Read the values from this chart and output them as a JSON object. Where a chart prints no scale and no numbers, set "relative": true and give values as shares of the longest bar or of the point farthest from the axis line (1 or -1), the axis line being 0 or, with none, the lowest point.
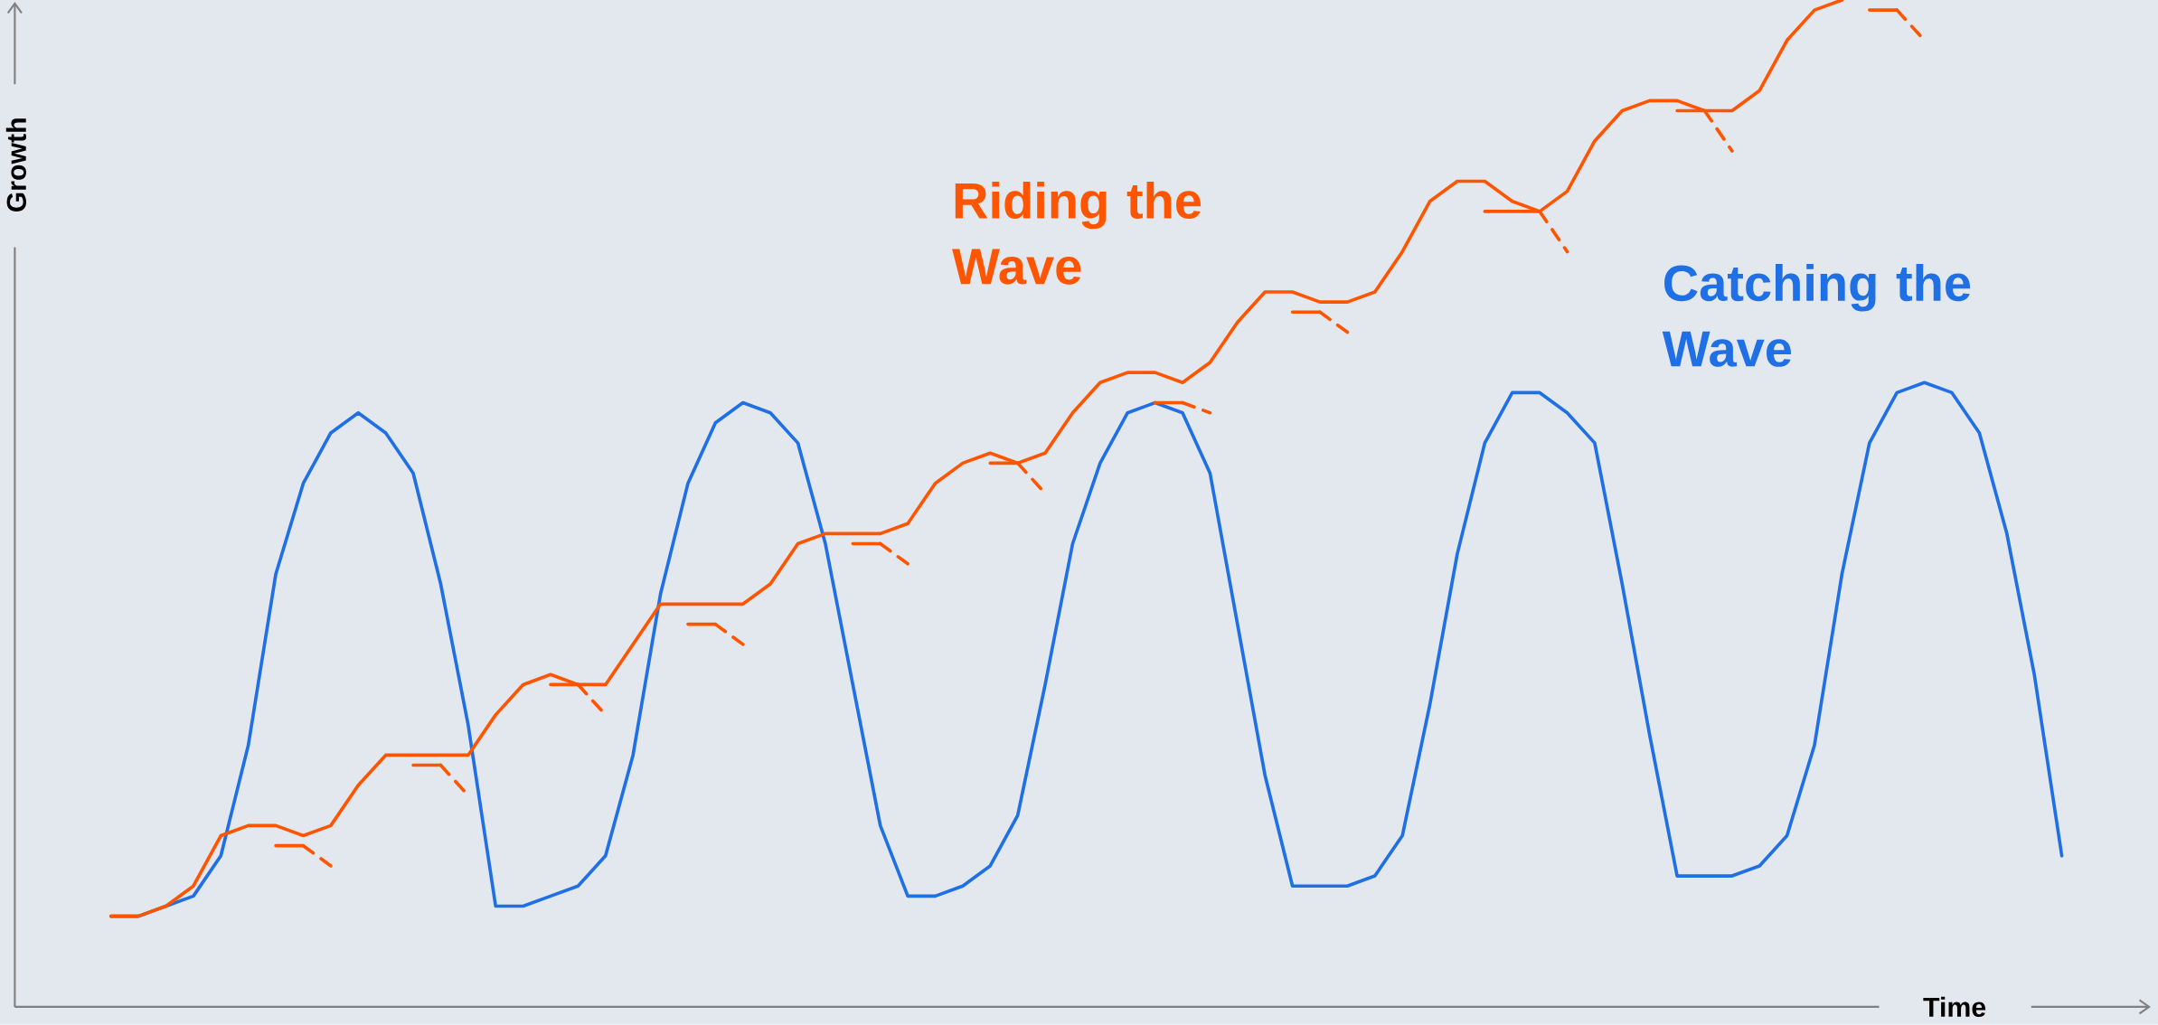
{
  "chart_data": {
    "type": "line",
    "relative": true,
    "xlabel": "Time",
    "ylabel": "Growth",
    "categories": [
      null,
      null,
      null,
      null,
      null,
      null,
      null,
      null,
      null,
      null,
      null,
      null,
      null,
      null,
      null,
      null,
      null,
      null,
      null,
      null,
      null,
      null,
      null,
      null,
      null,
      null,
      null,
      null,
      null,
      null,
      null,
      null,
      null,
      null,
      null,
      null,
      null,
      null,
      null,
      null,
      null,
      null,
      null,
      null,
      null,
      null,
      null,
      null,
      null,
      null,
      null,
      null,
      null,
      null,
      null,
      null,
      null,
      null,
      null,
      null,
      null,
      null,
      null,
      null,
      null,
      null,
      null,
      null,
      null,
      null,
      null,
      null
    ],
    "series": [
      {
        "name": "Catching the Wave",
        "color": "#1f6fe5",
        "values": [
          0.09,
          0.09,
          0.1,
          0.11,
          0.15,
          0.26,
          0.43,
          0.52,
          0.57,
          0.59,
          0.57,
          0.53,
          0.42,
          0.28,
          0.1,
          0.1,
          0.11,
          0.12,
          0.15,
          0.25,
          0.41,
          0.52,
          0.58,
          0.6,
          0.59,
          0.56,
          0.46,
          0.32,
          0.18,
          0.11,
          0.11,
          0.12,
          0.14,
          0.19,
          0.32,
          0.46,
          0.54,
          0.59,
          0.6,
          0.59,
          0.53,
          0.38,
          0.23,
          0.12,
          0.12,
          0.12,
          0.13,
          0.17,
          0.3,
          0.45,
          0.56,
          0.61,
          0.61,
          0.59,
          0.56,
          0.42,
          0.27,
          0.13,
          0.13,
          0.13,
          0.14,
          0.17,
          0.26,
          0.43,
          0.56,
          0.61,
          0.62,
          0.61,
          0.57,
          0.47,
          0.33,
          0.15
        ]
      },
      {
        "name": "Riding the Wave",
        "color": "#ff5500",
        "values": [
          0.09,
          0.09,
          0.1,
          0.12,
          0.17,
          0.18,
          0.18,
          0.17,
          0.18,
          0.22,
          0.25,
          0.25,
          0.25,
          0.25,
          0.29,
          0.32,
          0.33,
          0.32,
          0.32,
          0.36,
          0.4,
          0.4,
          0.4,
          0.4,
          0.42,
          0.46,
          0.47,
          0.47,
          0.47,
          0.48,
          0.52,
          0.54,
          0.55,
          0.54,
          0.55,
          0.59,
          0.62,
          0.63,
          0.63,
          0.62,
          0.64,
          0.68,
          0.71,
          0.71,
          0.7,
          0.7,
          0.71,
          0.75,
          0.8,
          0.82,
          0.82,
          0.8,
          0.79,
          0.81,
          0.86,
          0.89,
          0.9,
          0.9,
          0.89,
          0.89,
          0.91,
          0.96,
          0.99,
          1.0,
          null,
          null,
          null,
          null,
          null,
          null,
          null,
          null
        ]
      },
      {
        "color": "#ff5500",
        "values": [
          null,
          null,
          null,
          null,
          null,
          null,
          0.16,
          0.16,
          null,
          null,
          null,
          0.24,
          0.24,
          null,
          null,
          null,
          0.32,
          0.32,
          null,
          null,
          null,
          0.38,
          0.38,
          null,
          null,
          null,
          null,
          0.46,
          0.46,
          null,
          null,
          null,
          0.54,
          0.54,
          null,
          null,
          null,
          null,
          0.6,
          0.6,
          null,
          null,
          null,
          0.69,
          0.69,
          null,
          null,
          null,
          null,
          null,
          0.79,
          0.79,
          0.79,
          null,
          null,
          null,
          null,
          0.89,
          0.89,
          null,
          null,
          null,
          null,
          null,
          0.99,
          0.99,
          null,
          null,
          null,
          null,
          null,
          null
        ]
      },
      {
        "color": "#ff5500",
        "line_style": "dashed",
        "values": [
          null,
          null,
          null,
          null,
          null,
          null,
          null,
          0.16,
          0.14,
          null,
          null,
          null,
          0.24,
          0.21,
          null,
          null,
          null,
          0.32,
          0.29,
          null,
          null,
          null,
          0.38,
          0.36,
          null,
          null,
          null,
          null,
          0.46,
          0.44,
          null,
          null,
          null,
          0.54,
          0.51,
          null,
          null,
          null,
          null,
          0.6,
          0.59,
          null,
          null,
          null,
          0.69,
          0.67,
          null,
          null,
          null,
          null,
          null,
          null,
          0.79,
          0.75,
          null,
          null,
          null,
          null,
          0.89,
          0.85,
          null,
          null,
          null,
          null,
          null,
          0.99,
          0.96,
          null,
          null,
          null,
          null,
          null
        ]
      }
    ]
  }
}
